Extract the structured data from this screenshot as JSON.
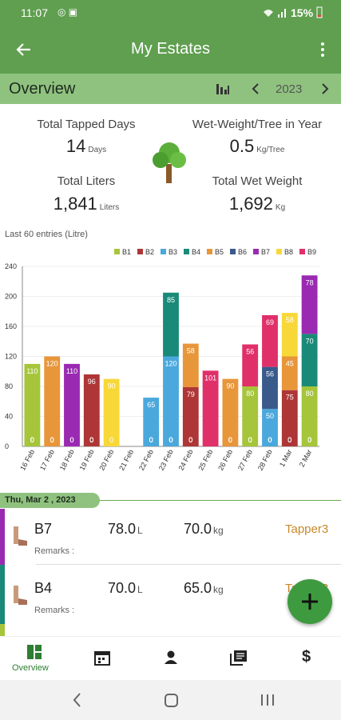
{
  "status_bar": {
    "time": "11:07",
    "battery": "15%"
  },
  "app_bar": {
    "title": "My Estates"
  },
  "overview_bar": {
    "title": "Overview",
    "year": "2023"
  },
  "stats": [
    {
      "label": "Total Tapped Days",
      "value": "14",
      "unit": "Days"
    },
    {
      "label": "Wet-Weight/Tree in Year",
      "value": "0.5",
      "unit": "Kg/Tree"
    },
    {
      "label": "Total Liters",
      "value": "1,841",
      "unit": "Liters"
    },
    {
      "label": "Total Wet Weight",
      "value": "1,692",
      "unit": "Kg"
    }
  ],
  "chart_data": {
    "type": "bar",
    "stacked": true,
    "title": "Last 60 entries (Litre)",
    "categories": [
      "16 Feb",
      "17 Feb",
      "18 Feb",
      "19 Feb",
      "20 Feb",
      "21 Feb",
      "22 Feb",
      "23 Feb",
      "24 Feb",
      "25 Feb",
      "26 Feb",
      "27 Feb",
      "28 Feb",
      "1 Mar",
      "2 Mar"
    ],
    "series": [
      {
        "name": "B1",
        "color": "#a6c53a",
        "values": [
          110,
          0,
          0,
          0,
          0,
          null,
          0,
          0,
          0,
          0,
          0,
          80,
          0,
          0,
          80
        ]
      },
      {
        "name": "B2",
        "color": "#ae3636",
        "values": [
          0,
          0,
          0,
          96,
          0,
          null,
          0,
          0,
          79,
          0,
          0,
          0,
          0,
          75,
          0
        ]
      },
      {
        "name": "B3",
        "color": "#4aa8dc",
        "values": [
          0,
          0,
          0,
          0,
          0,
          null,
          65,
          120,
          0,
          0,
          0,
          0,
          50,
          0,
          0
        ]
      },
      {
        "name": "B4",
        "color": "#1a8a78",
        "values": [
          0,
          0,
          0,
          0,
          0,
          null,
          0,
          85,
          0,
          0,
          0,
          0,
          0,
          0,
          70
        ]
      },
      {
        "name": "B5",
        "color": "#e8963a",
        "values": [
          0,
          120,
          0,
          0,
          0,
          null,
          0,
          0,
          58,
          0,
          90,
          0,
          0,
          45,
          0
        ]
      },
      {
        "name": "B6",
        "color": "#3a5a8c",
        "values": [
          0,
          0,
          0,
          0,
          0,
          null,
          0,
          0,
          0,
          0,
          0,
          0,
          56,
          0,
          0
        ]
      },
      {
        "name": "B7",
        "color": "#9a2ab2",
        "values": [
          0,
          0,
          110,
          0,
          0,
          null,
          0,
          0,
          0,
          0,
          0,
          0,
          0,
          0,
          78
        ]
      },
      {
        "name": "B8",
        "color": "#f8d838",
        "values": [
          0,
          0,
          0,
          0,
          90,
          null,
          0,
          0,
          0,
          0,
          0,
          0,
          0,
          58,
          0
        ]
      },
      {
        "name": "B9",
        "color": "#e0306a",
        "values": [
          0,
          0,
          0,
          0,
          0,
          null,
          0,
          0,
          0,
          101,
          0,
          56,
          69,
          0,
          0
        ]
      }
    ],
    "ylim": [
      0,
      240
    ],
    "yticks": [
      0,
      40,
      80,
      120,
      160,
      200,
      240
    ],
    "grid": true,
    "legend": "top-right"
  },
  "entries": {
    "date": "Thu, Mar 2 , 2023",
    "items": [
      {
        "block": "B7",
        "liters": "78.0",
        "liters_unit": "L",
        "weight": "70.0",
        "weight_unit": "kg",
        "tapper": "Tapper3",
        "remarks": "Remarks :"
      },
      {
        "block": "B4",
        "liters": "70.0",
        "liters_unit": "L",
        "weight": "65.0",
        "weight_unit": "kg",
        "tapper": "Tapper3",
        "remarks": "Remarks :"
      }
    ]
  },
  "bottom_nav": {
    "active": "Overview"
  }
}
